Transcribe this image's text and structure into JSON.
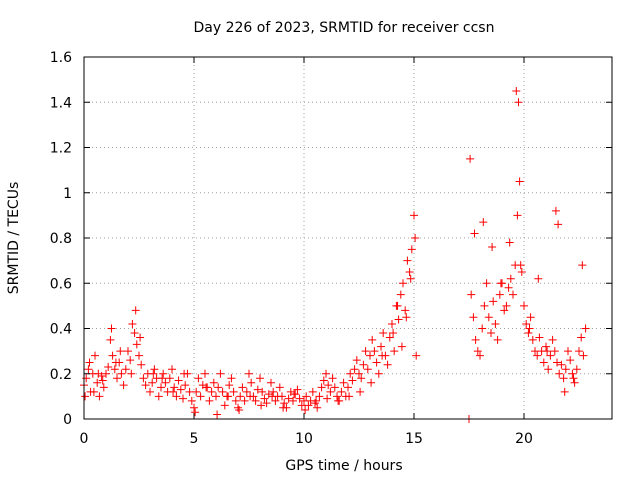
{
  "chart_data": {
    "type": "scatter",
    "title": "Day 226 of 2023, SRMTID for receiver ccsn",
    "xlabel": "GPS time / hours",
    "ylabel": "SRMTID / TECUs",
    "xlim": [
      0,
      24
    ],
    "ylim": [
      0,
      1.6
    ],
    "xticks": [
      0,
      5,
      10,
      15,
      20
    ],
    "xtick_labels": [
      "0",
      "5",
      "10",
      "15",
      "20"
    ],
    "yticks": [
      0,
      0.2,
      0.4,
      0.6,
      0.8,
      1.0,
      1.2,
      1.4,
      1.6
    ],
    "ytick_labels": [
      "0",
      "0.2",
      "0.4",
      "0.6",
      "0.8",
      "1",
      "1.2",
      "1.4",
      "1.6"
    ],
    "grid": true,
    "marker": "+",
    "marker_color": "#ff0000",
    "series": [
      {
        "name": "SRMTID",
        "x": [
          0.0,
          0.1,
          0.2,
          0.3,
          0.4,
          0.5,
          0.6,
          0.7,
          0.8,
          0.9,
          1.0,
          1.1,
          1.2,
          1.3,
          1.4,
          1.5,
          1.6,
          1.7,
          1.8,
          1.9,
          2.0,
          2.1,
          2.2,
          2.3,
          2.4,
          2.5,
          2.6,
          2.7,
          2.8,
          2.9,
          3.0,
          3.1,
          3.2,
          3.3,
          3.4,
          3.5,
          3.6,
          3.7,
          3.8,
          3.9,
          4.0,
          4.1,
          4.2,
          4.3,
          4.4,
          4.5,
          4.6,
          4.7,
          4.8,
          4.9,
          5.0,
          5.1,
          5.2,
          5.3,
          5.4,
          5.5,
          5.6,
          5.7,
          5.8,
          5.9,
          6.0,
          6.1,
          6.2,
          6.3,
          6.4,
          6.5,
          6.6,
          6.7,
          6.8,
          6.9,
          7.0,
          7.1,
          7.2,
          7.3,
          7.4,
          7.5,
          7.6,
          7.7,
          7.8,
          7.9,
          8.0,
          8.1,
          8.2,
          8.3,
          8.4,
          8.5,
          8.6,
          8.7,
          8.8,
          8.9,
          9.0,
          9.1,
          9.2,
          9.3,
          9.4,
          9.5,
          9.6,
          9.7,
          9.8,
          9.9,
          10.0,
          10.1,
          10.2,
          10.3,
          10.4,
          10.5,
          10.6,
          10.7,
          10.8,
          10.9,
          11.0,
          11.1,
          11.2,
          11.3,
          11.4,
          11.5,
          11.6,
          11.7,
          11.8,
          11.9,
          12.0,
          12.1,
          12.2,
          12.3,
          12.4,
          12.5,
          12.6,
          12.7,
          12.8,
          12.9,
          13.0,
          13.1,
          13.2,
          13.3,
          13.4,
          13.5,
          13.6,
          13.7,
          13.8,
          13.9,
          14.0,
          14.1,
          14.2,
          14.3,
          14.4,
          14.5,
          14.6,
          14.7,
          14.8,
          14.9,
          15.0,
          15.05,
          15.1,
          17.5,
          17.6,
          17.7,
          17.8,
          17.9,
          18.0,
          18.1,
          18.2,
          18.3,
          18.4,
          18.5,
          18.6,
          18.7,
          18.8,
          18.9,
          19.0,
          19.1,
          19.2,
          19.3,
          19.4,
          19.5,
          19.6,
          19.7,
          19.75,
          19.8,
          19.9,
          20.0,
          20.1,
          20.2,
          20.3,
          20.4,
          20.5,
          20.6,
          20.7,
          20.8,
          20.9,
          21.0,
          21.1,
          21.2,
          21.3,
          21.4,
          21.5,
          21.6,
          21.7,
          21.8,
          21.9,
          22.0,
          22.1,
          22.2,
          22.3,
          22.4,
          22.5,
          22.6,
          22.7,
          22.8,
          0.05,
          0.25,
          0.45,
          0.65,
          0.85,
          1.25,
          1.45,
          1.65,
          2.15,
          2.35,
          2.55,
          3.15,
          3.55,
          4.05,
          4.55,
          5.05,
          5.55,
          6.05,
          6.55,
          7.05,
          7.55,
          8.05,
          8.55,
          9.05,
          9.55,
          10.05,
          10.55,
          11.05,
          11.55,
          12.05,
          12.55,
          13.05,
          13.55,
          14.05,
          14.25,
          14.45,
          14.65,
          14.85,
          17.55,
          17.75,
          18.15,
          18.55,
          18.95,
          19.35,
          19.65,
          19.85,
          20.25,
          20.65,
          21.05,
          21.45,
          21.55,
          21.85,
          22.25,
          22.65
        ],
        "y": [
          0.15,
          0.18,
          0.22,
          0.12,
          0.2,
          0.28,
          0.16,
          0.1,
          0.19,
          0.14,
          0.2,
          0.23,
          0.35,
          0.28,
          0.22,
          0.18,
          0.25,
          0.2,
          0.15,
          0.22,
          0.3,
          0.26,
          0.42,
          0.38,
          0.33,
          0.28,
          0.24,
          0.18,
          0.15,
          0.2,
          0.12,
          0.16,
          0.22,
          0.18,
          0.1,
          0.14,
          0.2,
          0.16,
          0.12,
          0.18,
          0.22,
          0.14,
          0.1,
          0.17,
          0.13,
          0.09,
          0.15,
          0.2,
          0.12,
          0.08,
          0.05,
          0.12,
          0.18,
          0.1,
          0.15,
          0.2,
          0.14,
          0.08,
          0.12,
          0.16,
          0.1,
          0.14,
          0.2,
          0.12,
          0.06,
          0.1,
          0.15,
          0.18,
          0.12,
          0.08,
          0.05,
          0.1,
          0.14,
          0.08,
          0.12,
          0.2,
          0.16,
          0.1,
          0.08,
          0.13,
          0.18,
          0.12,
          0.09,
          0.07,
          0.11,
          0.16,
          0.12,
          0.08,
          0.1,
          0.14,
          0.1,
          0.07,
          0.05,
          0.09,
          0.12,
          0.08,
          0.11,
          0.13,
          0.09,
          0.06,
          0.08,
          0.1,
          0.06,
          0.08,
          0.12,
          0.07,
          0.05,
          0.1,
          0.14,
          0.17,
          0.2,
          0.15,
          0.12,
          0.18,
          0.14,
          0.1,
          0.08,
          0.12,
          0.16,
          0.1,
          0.14,
          0.2,
          0.17,
          0.22,
          0.26,
          0.2,
          0.18,
          0.24,
          0.3,
          0.22,
          0.28,
          0.35,
          0.3,
          0.25,
          0.2,
          0.32,
          0.38,
          0.28,
          0.24,
          0.36,
          0.42,
          0.3,
          0.5,
          0.44,
          0.55,
          0.6,
          0.48,
          0.7,
          0.65,
          0.75,
          0.9,
          0.8,
          0.28,
          0.0,
          0.55,
          0.45,
          0.35,
          0.3,
          0.28,
          0.4,
          0.5,
          0.6,
          0.45,
          0.38,
          0.52,
          0.42,
          0.35,
          0.55,
          0.6,
          0.48,
          0.5,
          0.58,
          0.62,
          0.55,
          0.68,
          0.9,
          1.4,
          1.05,
          0.65,
          0.5,
          0.42,
          0.38,
          0.45,
          0.35,
          0.3,
          0.28,
          0.36,
          0.3,
          0.25,
          0.32,
          0.22,
          0.28,
          0.35,
          0.3,
          0.25,
          0.2,
          0.24,
          0.18,
          0.22,
          0.3,
          0.26,
          0.2,
          0.16,
          0.22,
          0.3,
          0.36,
          0.28,
          0.4,
          0.1,
          0.25,
          0.12,
          0.2,
          0.17,
          0.4,
          0.25,
          0.3,
          0.2,
          0.48,
          0.36,
          0.2,
          0.18,
          0.12,
          0.2,
          0.03,
          0.14,
          0.02,
          0.1,
          0.04,
          0.1,
          0.06,
          0.1,
          0.05,
          0.11,
          0.04,
          0.08,
          0.09,
          0.08,
          0.1,
          0.12,
          0.16,
          0.28,
          0.38,
          0.5,
          0.32,
          0.45,
          0.62,
          1.15,
          0.82,
          0.87,
          0.76,
          0.6,
          0.78,
          1.45,
          0.68,
          0.4,
          0.62,
          0.3,
          0.92,
          0.86,
          0.12,
          0.18,
          0.68
        ]
      }
    ]
  }
}
